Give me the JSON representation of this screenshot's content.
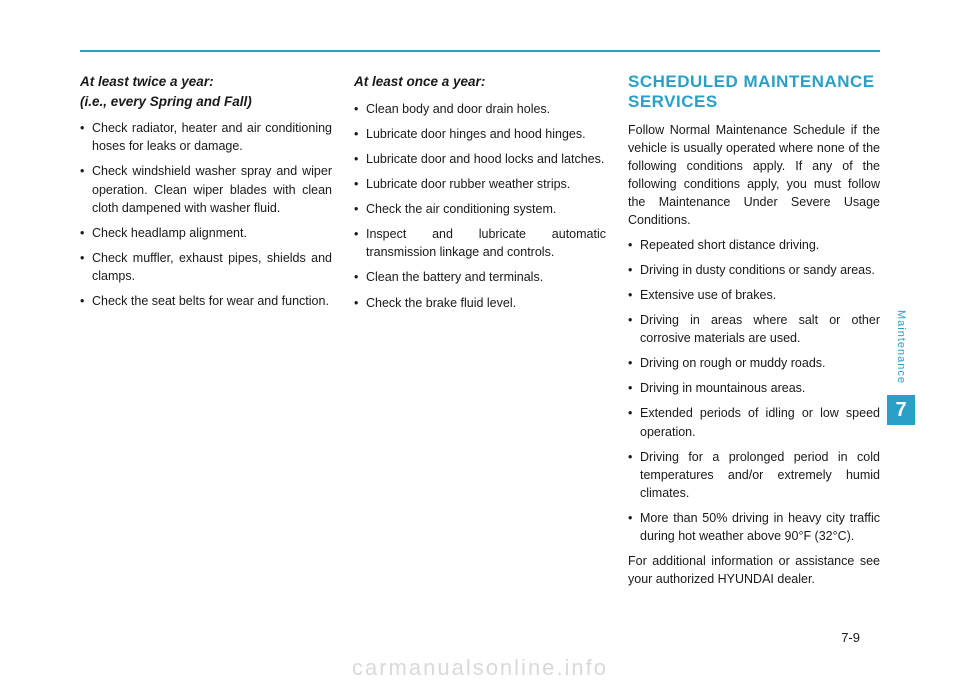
{
  "colors": {
    "accent": "#2aa0c8",
    "text": "#1a1a1a",
    "watermark": "#d9d9d9",
    "background": "#ffffff"
  },
  "typography": {
    "body_fontsize": 12.5,
    "heading_fontsize": 17,
    "subheading_fontsize": 13.5,
    "page_num_fontsize": 13,
    "watermark_fontsize": 22
  },
  "col1": {
    "heading_line1": "At least twice a year:",
    "heading_line2": "(i.e., every Spring and Fall)",
    "items": [
      "Check radiator, heater and air conditioning hoses for leaks or damage.",
      "Check windshield washer spray and wiper operation. Clean wiper blades with clean cloth dampened with washer fluid.",
      "Check headlamp alignment.",
      "Check muffler, exhaust pipes, shields and clamps.",
      "Check the seat belts for wear and function."
    ]
  },
  "col2": {
    "heading": "At least once a year:",
    "items": [
      "Clean body and door drain holes.",
      "Lubricate door hinges and hood hinges.",
      "Lubricate door and hood locks and latches.",
      "Lubricate door rubber weather strips.",
      "Check the air conditioning system.",
      "Inspect and lubricate automatic transmission linkage and controls.",
      "Clean the battery and terminals.",
      "Check the brake fluid level."
    ]
  },
  "col3": {
    "heading": "SCHEDULED MAINTENANCE SERVICES",
    "intro": "Follow Normal Maintenance Schedule if the vehicle is usually operated where none of the following conditions apply. If any of the following conditions apply, you must follow the Maintenance Under Severe Usage Conditions.",
    "items": [
      "Repeated short distance driving.",
      "Driving in dusty conditions or sandy areas.",
      "Extensive use of brakes.",
      "Driving in areas where salt or other corrosive materials are used.",
      "Driving on rough or muddy roads.",
      "Driving in mountainous areas.",
      "Extended periods of idling or low speed operation.",
      "Driving for a prolonged period in cold temperatures and/or extremely humid climates.",
      "More than 50% driving in heavy city traffic during hot weather above 90°F (32°C)."
    ],
    "outro": "For additional information or assistance see your authorized HYUNDAI dealer."
  },
  "sideTab": {
    "label": "Maintenance",
    "chapter": "7"
  },
  "pageNumber": "7-9",
  "watermark": "carmanualsonline.info"
}
